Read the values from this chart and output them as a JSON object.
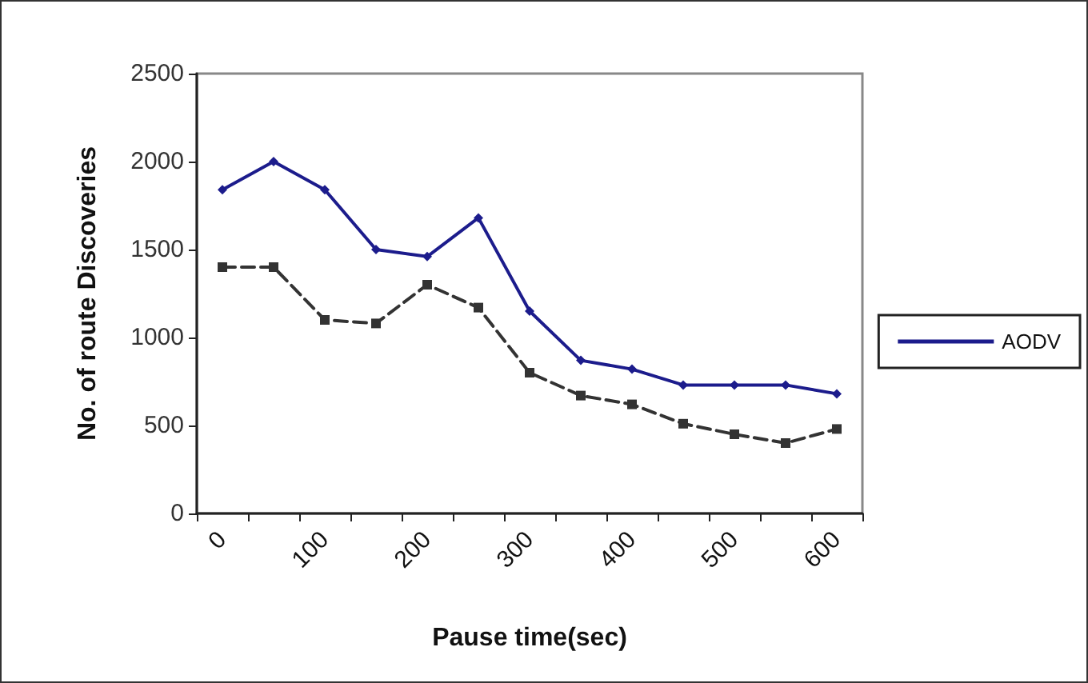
{
  "chart_data": {
    "type": "line",
    "xlabel": "Pause time(sec)",
    "ylabel": "No. of route Discoveries",
    "categories": [
      "0",
      null,
      "100",
      null,
      "200",
      null,
      "300",
      null,
      "400",
      null,
      "500",
      null,
      "600"
    ],
    "series": [
      {
        "name": "AODV",
        "color": "#1c1c8c",
        "marker": "diamond",
        "line_style": "solid",
        "values": [
          1840,
          2000,
          1840,
          1500,
          1460,
          1680,
          1150,
          870,
          820,
          730,
          730,
          730,
          680
        ]
      },
      {
        "color": "#333333",
        "marker": "square",
        "line_style": "dashed",
        "values": [
          1400,
          1400,
          1100,
          1080,
          1300,
          1170,
          800,
          670,
          620,
          510,
          450,
          400,
          480
        ]
      }
    ],
    "ylim": [
      0,
      2500
    ],
    "yticks": [
      0,
      500,
      1000,
      1500,
      2000,
      2500
    ],
    "grid": false,
    "legend": "right"
  }
}
